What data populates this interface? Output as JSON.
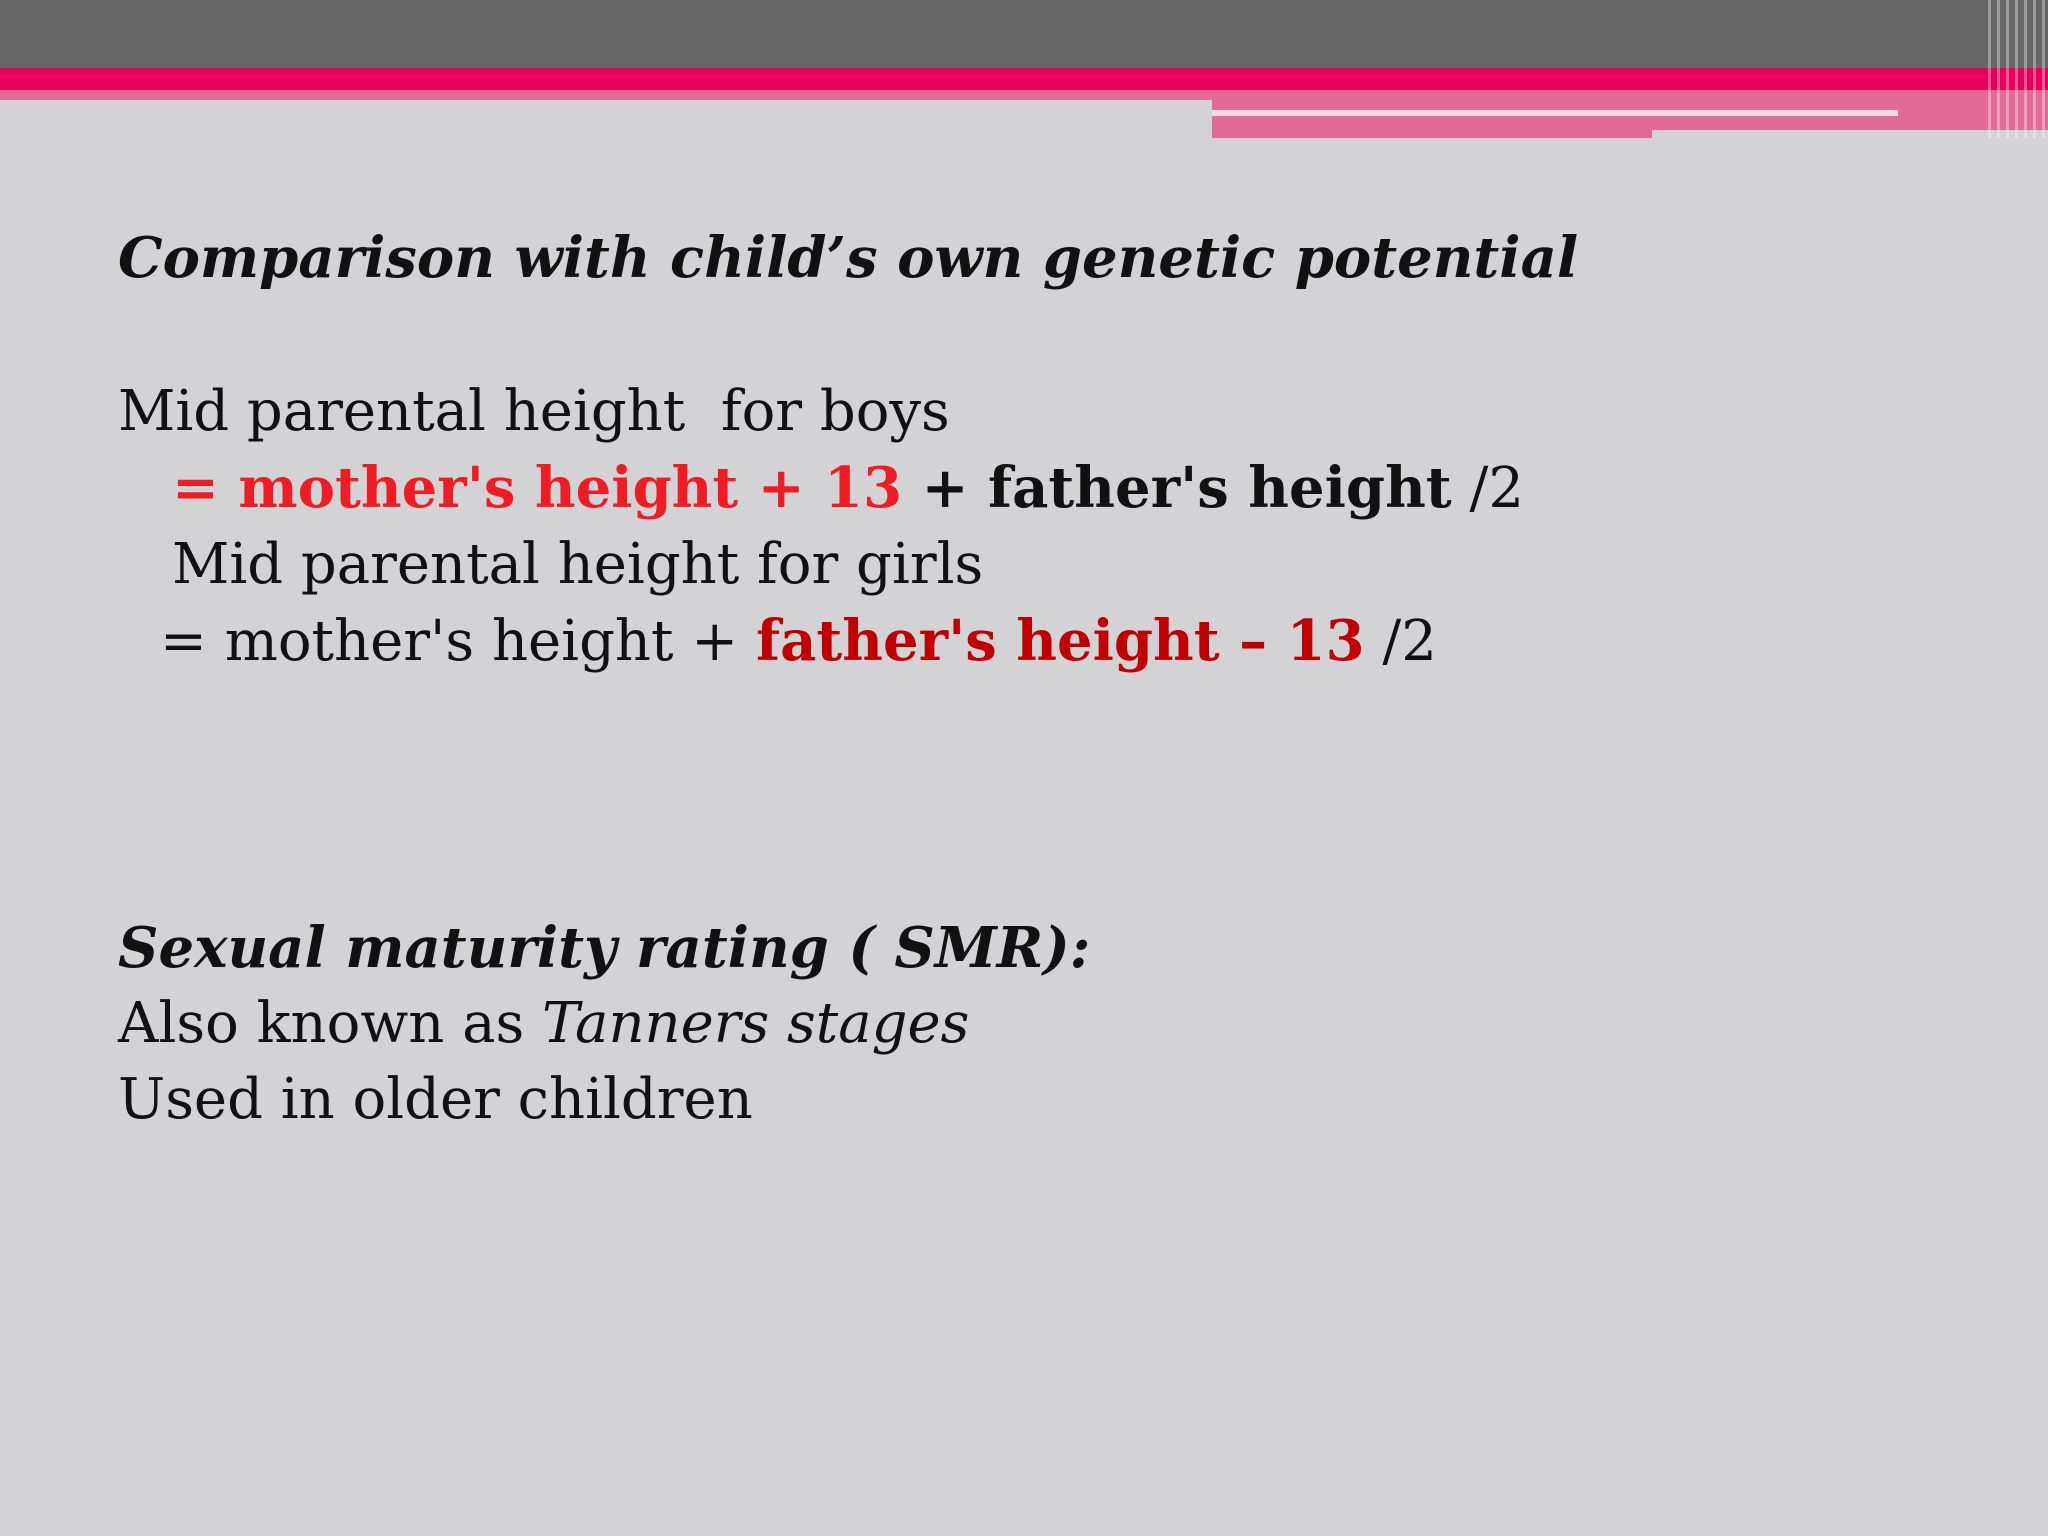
{
  "slide": {
    "heading1": "Comparison with child’s own genetic potential",
    "boys_label": "Mid parental height  for boys",
    "boys_formula": {
      "eq_prefix": "= ",
      "mother_part": "mother's height + 13",
      "plus": " + ",
      "father_part": "father's height",
      "divisor": " /2"
    },
    "girls_label": "Mid parental height for girls",
    "girls_formula": {
      "eq_prefix": "= mother's height + ",
      "father_part": "father's height – 13",
      "divisor": " /2"
    },
    "heading2": "Sexual maturity rating ( SMR):",
    "aka_prefix": "Also known as ",
    "aka_term": "Tanners stages",
    "usage": "Used in older children"
  },
  "colors": {
    "background": "#d3d2d5",
    "header_gray": "#676767",
    "accent_pink": "#e8005a",
    "highlight_red": "#ef1c24",
    "highlight_dark_red": "#c00000"
  }
}
